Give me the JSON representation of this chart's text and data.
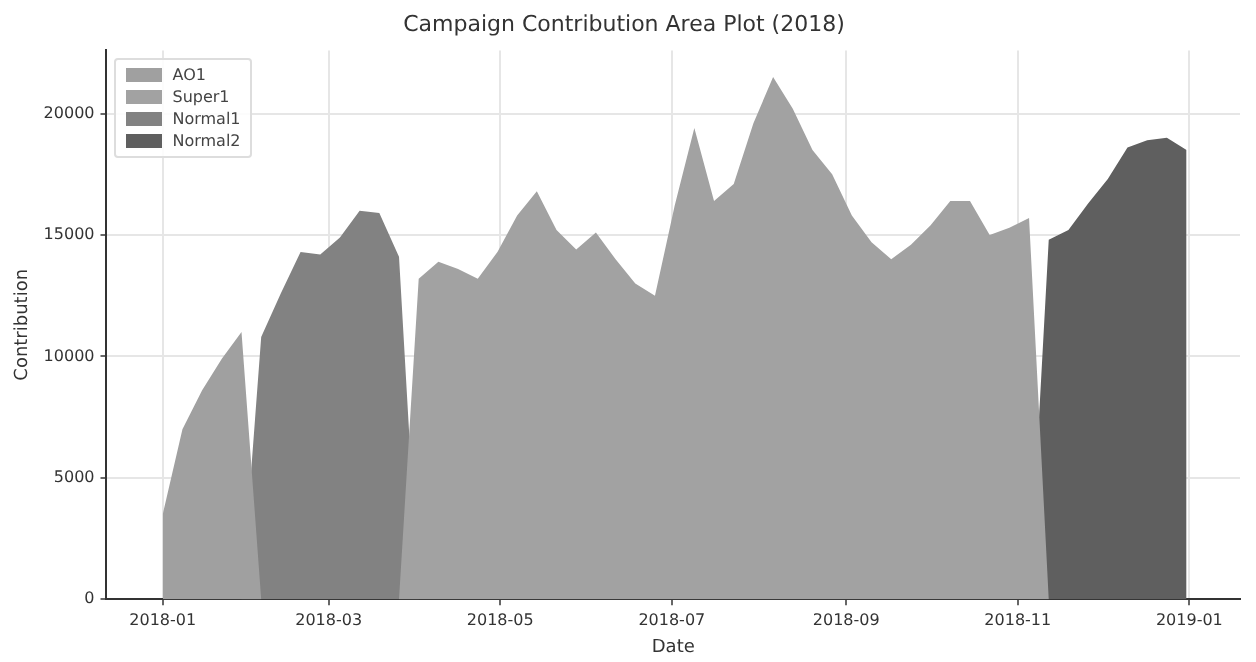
{
  "chart_data": {
    "type": "area",
    "title": "Campaign Contribution Area Plot (2018)",
    "xlabel": "Date",
    "ylabel": "Contribution",
    "x": [
      "2018-01-01",
      "2018-01-08",
      "2018-01-15",
      "2018-01-22",
      "2018-01-29",
      "2018-02-05",
      "2018-02-12",
      "2018-02-19",
      "2018-02-26",
      "2018-03-05",
      "2018-03-12",
      "2018-03-19",
      "2018-03-26",
      "2018-04-02",
      "2018-04-09",
      "2018-04-16",
      "2018-04-23",
      "2018-04-30",
      "2018-05-07",
      "2018-05-14",
      "2018-05-21",
      "2018-05-28",
      "2018-06-04",
      "2018-06-11",
      "2018-06-18",
      "2018-06-25",
      "2018-07-02",
      "2018-07-09",
      "2018-07-16",
      "2018-07-23",
      "2018-07-30",
      "2018-08-06",
      "2018-08-13",
      "2018-08-20",
      "2018-08-27",
      "2018-09-03",
      "2018-09-10",
      "2018-09-17",
      "2018-09-24",
      "2018-10-01",
      "2018-10-08",
      "2018-10-15",
      "2018-10-22",
      "2018-10-29",
      "2018-11-05",
      "2018-11-12",
      "2018-11-19",
      "2018-11-26",
      "2018-12-03",
      "2018-12-10",
      "2018-12-17",
      "2018-12-24",
      "2018-12-31"
    ],
    "series": [
      {
        "name": "AO1",
        "color": "#a0a0a0",
        "values": [
          3500,
          7000,
          8600,
          9900,
          11000,
          0,
          0,
          0,
          0,
          0,
          0,
          0,
          0,
          0,
          0,
          0,
          0,
          0,
          0,
          0,
          0,
          0,
          0,
          0,
          0,
          0,
          0,
          0,
          0,
          0,
          0,
          0,
          0,
          0,
          0,
          0,
          0,
          0,
          0,
          0,
          0,
          0,
          0,
          0,
          0,
          0,
          0,
          0,
          0,
          0,
          0,
          0,
          0
        ]
      },
      {
        "name": "Super1",
        "color": "#a2a2a2",
        "values": [
          0,
          0,
          0,
          0,
          0,
          0,
          0,
          0,
          0,
          0,
          0,
          0,
          0,
          13200,
          13900,
          13600,
          13200,
          14300,
          15800,
          16800,
          15200,
          14400,
          15100,
          14000,
          13000,
          12500,
          16200,
          19400,
          16400,
          17100,
          19600,
          21500,
          20200,
          18500,
          17500,
          15800,
          14700,
          14000,
          14600,
          15400,
          16400,
          16400,
          15000,
          15300,
          15700,
          0,
          0,
          0,
          0,
          0,
          0,
          0,
          0
        ]
      },
      {
        "name": "Normal1",
        "color": "#828282",
        "values": [
          0,
          0,
          0,
          0,
          0,
          10800,
          12600,
          14300,
          14200,
          14900,
          16000,
          15900,
          14100,
          0,
          0,
          0,
          0,
          0,
          0,
          0,
          0,
          0,
          0,
          0,
          0,
          0,
          0,
          0,
          0,
          0,
          0,
          0,
          0,
          0,
          0,
          0,
          0,
          0,
          0,
          0,
          0,
          0,
          0,
          0,
          0,
          0,
          0,
          0,
          0,
          0,
          0,
          0,
          0
        ]
      },
      {
        "name": "Normal2",
        "color": "#5f5f5f",
        "values": [
          0,
          0,
          0,
          0,
          0,
          0,
          0,
          0,
          0,
          0,
          0,
          0,
          0,
          0,
          0,
          0,
          0,
          0,
          0,
          0,
          0,
          0,
          0,
          0,
          0,
          0,
          0,
          0,
          0,
          0,
          0,
          0,
          0,
          0,
          0,
          0,
          0,
          0,
          0,
          0,
          0,
          0,
          0,
          0,
          0,
          14800,
          15200,
          16300,
          17300,
          18600,
          18900,
          19000,
          18500
        ]
      }
    ],
    "xlim": [
      "2017-12-12",
      "2019-01-19"
    ],
    "xticks": [
      "2018-01",
      "2018-03",
      "2018-05",
      "2018-07",
      "2018-09",
      "2018-11",
      "2019-01"
    ],
    "ylim": [
      0,
      22600
    ],
    "yticks": [
      0,
      5000,
      10000,
      15000,
      20000
    ],
    "grid": true,
    "legend": "top left"
  }
}
